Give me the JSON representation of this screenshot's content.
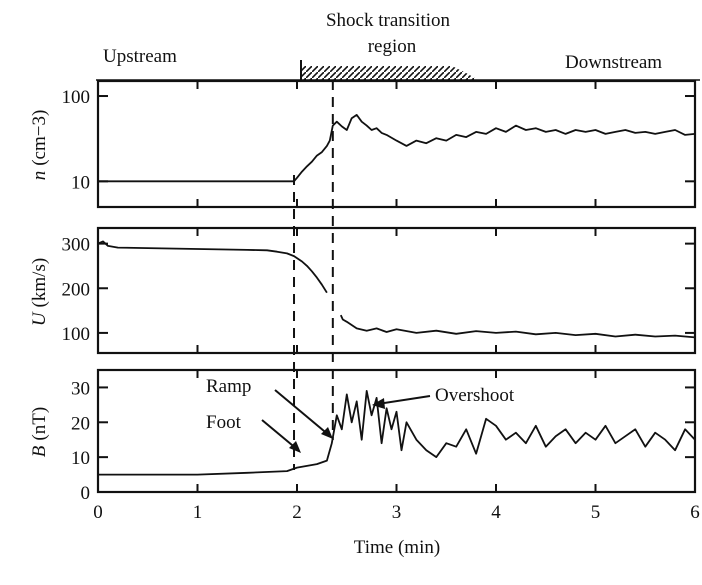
{
  "chart_data": [
    {
      "type": "line",
      "panel": "n",
      "ylabel_var": "n",
      "ylabel_unit": "(cm−3)",
      "yscale": "log",
      "ylim": [
        5,
        150
      ],
      "yticks": [
        10,
        100
      ],
      "ytick_labels": [
        "10",
        "100"
      ],
      "xlim": [
        0,
        6
      ],
      "series": [
        {
          "x": [
            0,
            0.5,
            1.0,
            1.5,
            1.8,
            1.97,
            2.0,
            2.05,
            2.1,
            2.15,
            2.2,
            2.25,
            2.3,
            2.33,
            2.36,
            2.4,
            2.45,
            2.5,
            2.55,
            2.6,
            2.65,
            2.7,
            2.75,
            2.8,
            2.85,
            2.9,
            3.0,
            3.1,
            3.2,
            3.3,
            3.4,
            3.5,
            3.6,
            3.7,
            3.8,
            3.9,
            4.0,
            4.1,
            4.2,
            4.3,
            4.4,
            4.5,
            4.6,
            4.7,
            4.8,
            4.9,
            5.0,
            5.1,
            5.2,
            5.3,
            5.4,
            5.5,
            5.6,
            5.7,
            5.8,
            5.9,
            6.0
          ],
          "y": [
            10,
            10,
            10,
            10,
            10,
            10,
            11,
            13,
            15,
            17,
            20,
            22,
            26,
            30,
            45,
            50,
            44,
            40,
            55,
            60,
            50,
            45,
            40,
            42,
            37,
            35,
            30,
            26,
            30,
            28,
            32,
            30,
            35,
            33,
            38,
            36,
            42,
            38,
            45,
            40,
            42,
            38,
            40,
            36,
            40,
            38,
            40,
            36,
            38,
            40,
            37,
            38,
            36,
            38,
            40,
            35,
            36
          ]
        }
      ]
    },
    {
      "type": "line",
      "panel": "U",
      "ylabel_var": "U",
      "ylabel_unit": "(km/s)",
      "ylim": [
        55,
        335
      ],
      "yticks": [
        100,
        200,
        300
      ],
      "ytick_labels": [
        "100",
        "200",
        "300"
      ],
      "xlim": [
        0,
        6
      ],
      "series": [
        {
          "x": [
            0,
            0.05,
            0.1,
            0.2,
            0.5,
            1.0,
            1.5,
            1.7,
            1.8,
            1.9,
            1.97,
            2.05,
            2.1,
            2.15,
            2.2,
            2.25,
            2.3
          ],
          "y": [
            300,
            305,
            295,
            291,
            290,
            288,
            286,
            285,
            282,
            278,
            272,
            260,
            250,
            238,
            224,
            208,
            190
          ]
        },
        {
          "x": [
            2.44,
            2.46,
            2.5,
            2.6,
            2.7,
            2.8,
            2.9,
            3.0,
            3.2,
            3.4,
            3.6,
            3.8,
            4.0,
            4.2,
            4.4,
            4.6,
            4.8,
            5.0,
            5.2,
            5.4,
            5.6,
            5.8,
            6.0
          ],
          "y": [
            140,
            130,
            125,
            110,
            105,
            110,
            102,
            108,
            100,
            105,
            98,
            104,
            100,
            103,
            97,
            100,
            95,
            98,
            92,
            96,
            92,
            94,
            90
          ]
        }
      ]
    },
    {
      "type": "line",
      "panel": "B",
      "ylabel_var": "B",
      "ylabel_unit": "(nT)",
      "ylim": [
        0,
        35
      ],
      "yticks": [
        0,
        10,
        20,
        30
      ],
      "ytick_labels": [
        "0",
        "10",
        "20",
        "30"
      ],
      "xlabel": "Time (min)",
      "xlim": [
        0,
        6
      ],
      "xticks": [
        0,
        1,
        2,
        3,
        4,
        5,
        6
      ],
      "xtick_labels": [
        "0",
        "1",
        "2",
        "3",
        "4",
        "5",
        "6"
      ],
      "series": [
        {
          "x": [
            0,
            0.5,
            1.0,
            1.5,
            1.9,
            2.0,
            2.1,
            2.2,
            2.3,
            2.35,
            2.4,
            2.45,
            2.5,
            2.55,
            2.6,
            2.65,
            2.7,
            2.75,
            2.8,
            2.85,
            2.9,
            2.95,
            3.0,
            3.05,
            3.1,
            3.2,
            3.3,
            3.4,
            3.5,
            3.6,
            3.7,
            3.8,
            3.9,
            4.0,
            4.1,
            4.2,
            4.3,
            4.4,
            4.5,
            4.6,
            4.7,
            4.8,
            4.9,
            5.0,
            5.1,
            5.2,
            5.3,
            5.4,
            5.5,
            5.6,
            5.7,
            5.8,
            5.9,
            6.0
          ],
          "y": [
            5,
            5,
            5,
            5.5,
            6,
            7,
            7.5,
            8,
            9,
            14,
            22,
            18,
            28,
            20,
            26,
            15,
            29,
            22,
            27,
            14,
            24,
            18,
            23,
            12,
            20,
            15,
            12,
            10,
            14,
            13,
            18,
            11,
            21,
            19,
            15,
            17,
            14,
            19,
            13,
            16,
            18,
            14,
            17,
            15,
            19,
            14,
            16,
            18,
            13,
            17,
            15,
            12,
            18,
            15
          ]
        }
      ]
    }
  ],
  "annotations": {
    "upstream": "Upstream",
    "shock_line1": "Shock transition",
    "shock_line2": "region",
    "downstream": "Downstream",
    "ramp": "Ramp",
    "foot": "Foot",
    "overshoot": "Overshoot"
  },
  "markers": {
    "dashed_times": [
      1.97,
      2.36
    ],
    "hatch_range": [
      1.97,
      3.55
    ]
  }
}
